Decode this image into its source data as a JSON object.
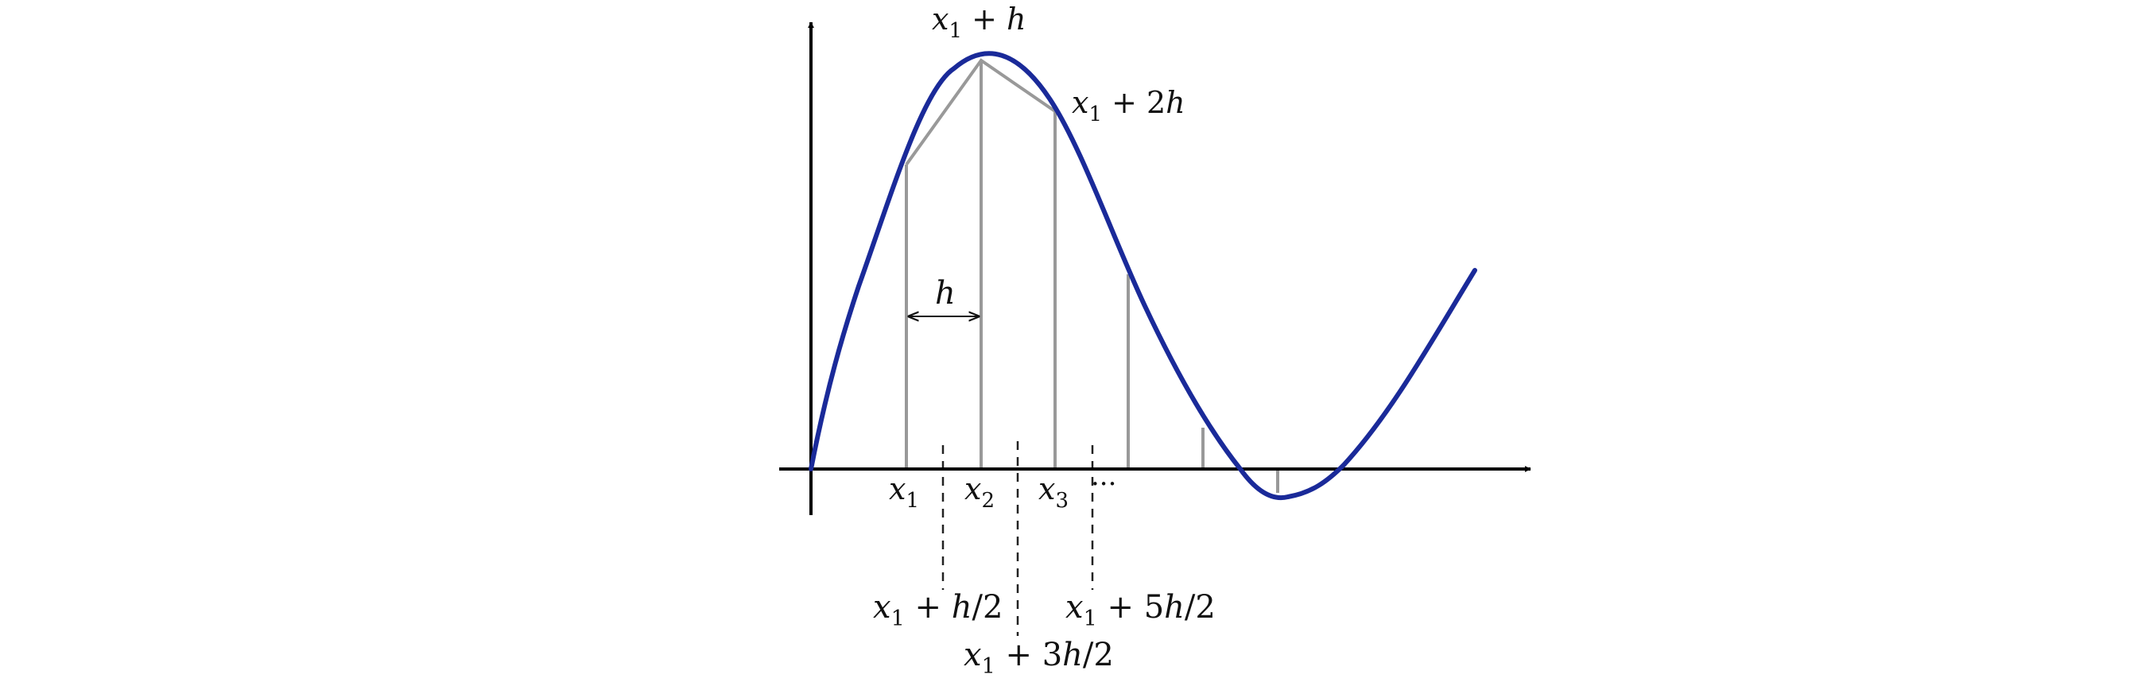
{
  "colors": {
    "curve": "#1a2a99",
    "axis": "#000000",
    "trapezoid": "#999999",
    "dashed": "#222222"
  },
  "labels": {
    "x1_plus_h": {
      "base": "x",
      "sub": "1",
      "rest": " + ",
      "var": "h",
      "tail": ""
    },
    "x1_plus_2h": {
      "base": "x",
      "sub": "1",
      "rest": " + 2",
      "var": "h",
      "tail": ""
    },
    "h_interval": {
      "var": "h"
    },
    "x1": {
      "base": "x",
      "sub": "1"
    },
    "x2": {
      "base": "x",
      "sub": "2"
    },
    "x3": {
      "base": "x",
      "sub": "3"
    },
    "ellipsis": "···",
    "x1_plus_h_half": {
      "base": "x",
      "sub": "1",
      "rest": " + ",
      "var": "h",
      "tail": "/2"
    },
    "x1_plus_3h_half": {
      "base": "x",
      "sub": "1",
      "rest": " + 3",
      "var": "h",
      "tail": "/2"
    },
    "x1_plus_5h_half": {
      "base": "x",
      "sub": "1",
      "rest": " + 5",
      "var": "h",
      "tail": "/2"
    }
  }
}
